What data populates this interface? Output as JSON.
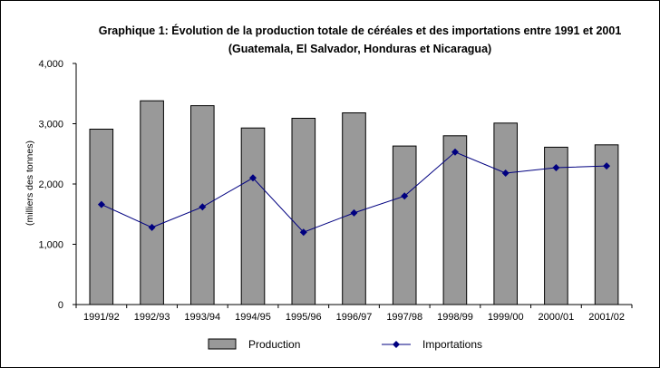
{
  "chart_data": {
    "type": "bar",
    "title": "Graphique 1: Évolution de la production totale de céréales et des importations entre 1991 et 2001",
    "subtitle": "(Guatemala, El Salvador, Honduras et Nicaragua)",
    "ylabel": "(milliers des tonnes)",
    "xlabel": "",
    "ylim": [
      0,
      4000
    ],
    "yticks": [
      0,
      1000,
      2000,
      3000,
      4000
    ],
    "ytick_labels": [
      "0",
      "1,000",
      "2,000",
      "3,000",
      "4,000"
    ],
    "categories": [
      "1991/92",
      "1992/93",
      "1993/94",
      "1994/95",
      "1995/96",
      "1996/97",
      "1997/98",
      "1998/99",
      "1999/00",
      "2000/01",
      "2001/02"
    ],
    "series": [
      {
        "name": "Production",
        "type": "bar",
        "color": "#999999",
        "values": [
          2910,
          3380,
          3300,
          2930,
          3090,
          3180,
          2630,
          2800,
          3010,
          2610,
          2650
        ]
      },
      {
        "name": "Importations",
        "type": "line",
        "color": "#000080",
        "marker": "diamond",
        "values": [
          1660,
          1280,
          1620,
          2100,
          1200,
          1520,
          1800,
          2530,
          2180,
          2270,
          2300
        ]
      }
    ],
    "grid": false,
    "legend": "bottom"
  }
}
